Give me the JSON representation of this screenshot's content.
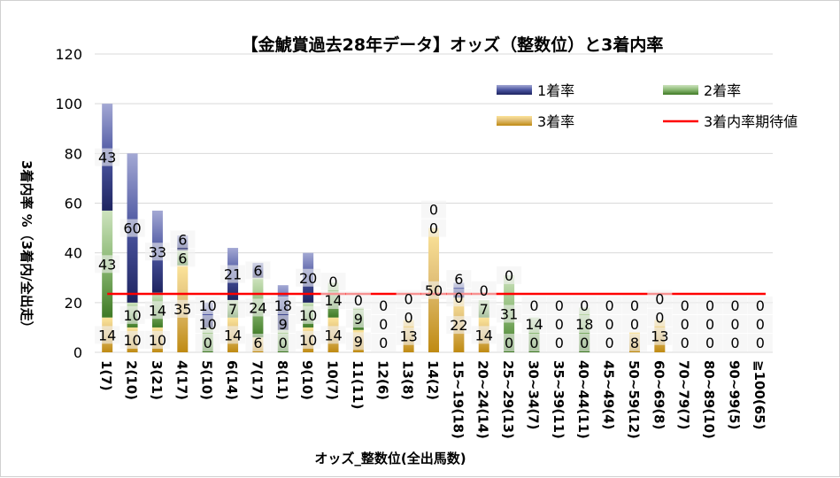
{
  "chart_data": {
    "type": "bar",
    "stacked": true,
    "title": "【金鯱賞過去28年データ】オッズ（整数位）と3着内率",
    "xlabel": "オッズ_整数位(全出馬数)",
    "ylabel": "3着内率 %（3着内/全出走）",
    "ylim": [
      0,
      120
    ],
    "yticks": [
      0,
      20,
      40,
      60,
      80,
      100,
      120
    ],
    "grid": true,
    "legend_position": "top-right",
    "categories": [
      "1(7)",
      "2(10)",
      "3(21)",
      "4(17)",
      "5(10)",
      "6(14)",
      "7(17)",
      "8(11)",
      "9(10)",
      "10(7)",
      "11(11)",
      "12(6)",
      "13(8)",
      "14(2)",
      "15~19(18)",
      "20~24(14)",
      "25~29(13)",
      "30~34(7)",
      "35~39(11)",
      "40~44(11)",
      "45~49(4)",
      "50~59(12)",
      "60~69(8)",
      "70~79(7)",
      "80~89(10)",
      "90~99(5)",
      "≧100(65)"
    ],
    "series": [
      {
        "name": "3着率",
        "color": "#c8951a",
        "values": [
          14,
          10,
          10,
          35,
          0,
          14,
          6,
          0,
          10,
          14,
          9,
          0,
          13,
          50,
          22,
          14,
          0,
          0,
          0,
          0,
          0,
          8,
          13,
          0,
          0,
          0,
          0
        ]
      },
      {
        "name": "2着率",
        "color": "#5a8a3a",
        "values": [
          43,
          10,
          14,
          6,
          10,
          7,
          24,
          9,
          10,
          14,
          9,
          0,
          0,
          0,
          0,
          7,
          31,
          14,
          0,
          18,
          0,
          0,
          0,
          0,
          0,
          0,
          0
        ]
      },
      {
        "name": "1着率",
        "color": "#2c3580",
        "values": [
          43,
          60,
          33,
          6,
          10,
          21,
          6,
          18,
          20,
          0,
          0,
          0,
          0,
          0,
          6,
          0,
          0,
          0,
          0,
          0,
          0,
          0,
          0,
          0,
          0,
          0,
          0
        ]
      }
    ],
    "reference_line": {
      "name": "3着内率期待値",
      "color": "#ff0000",
      "value": 23.5
    }
  }
}
